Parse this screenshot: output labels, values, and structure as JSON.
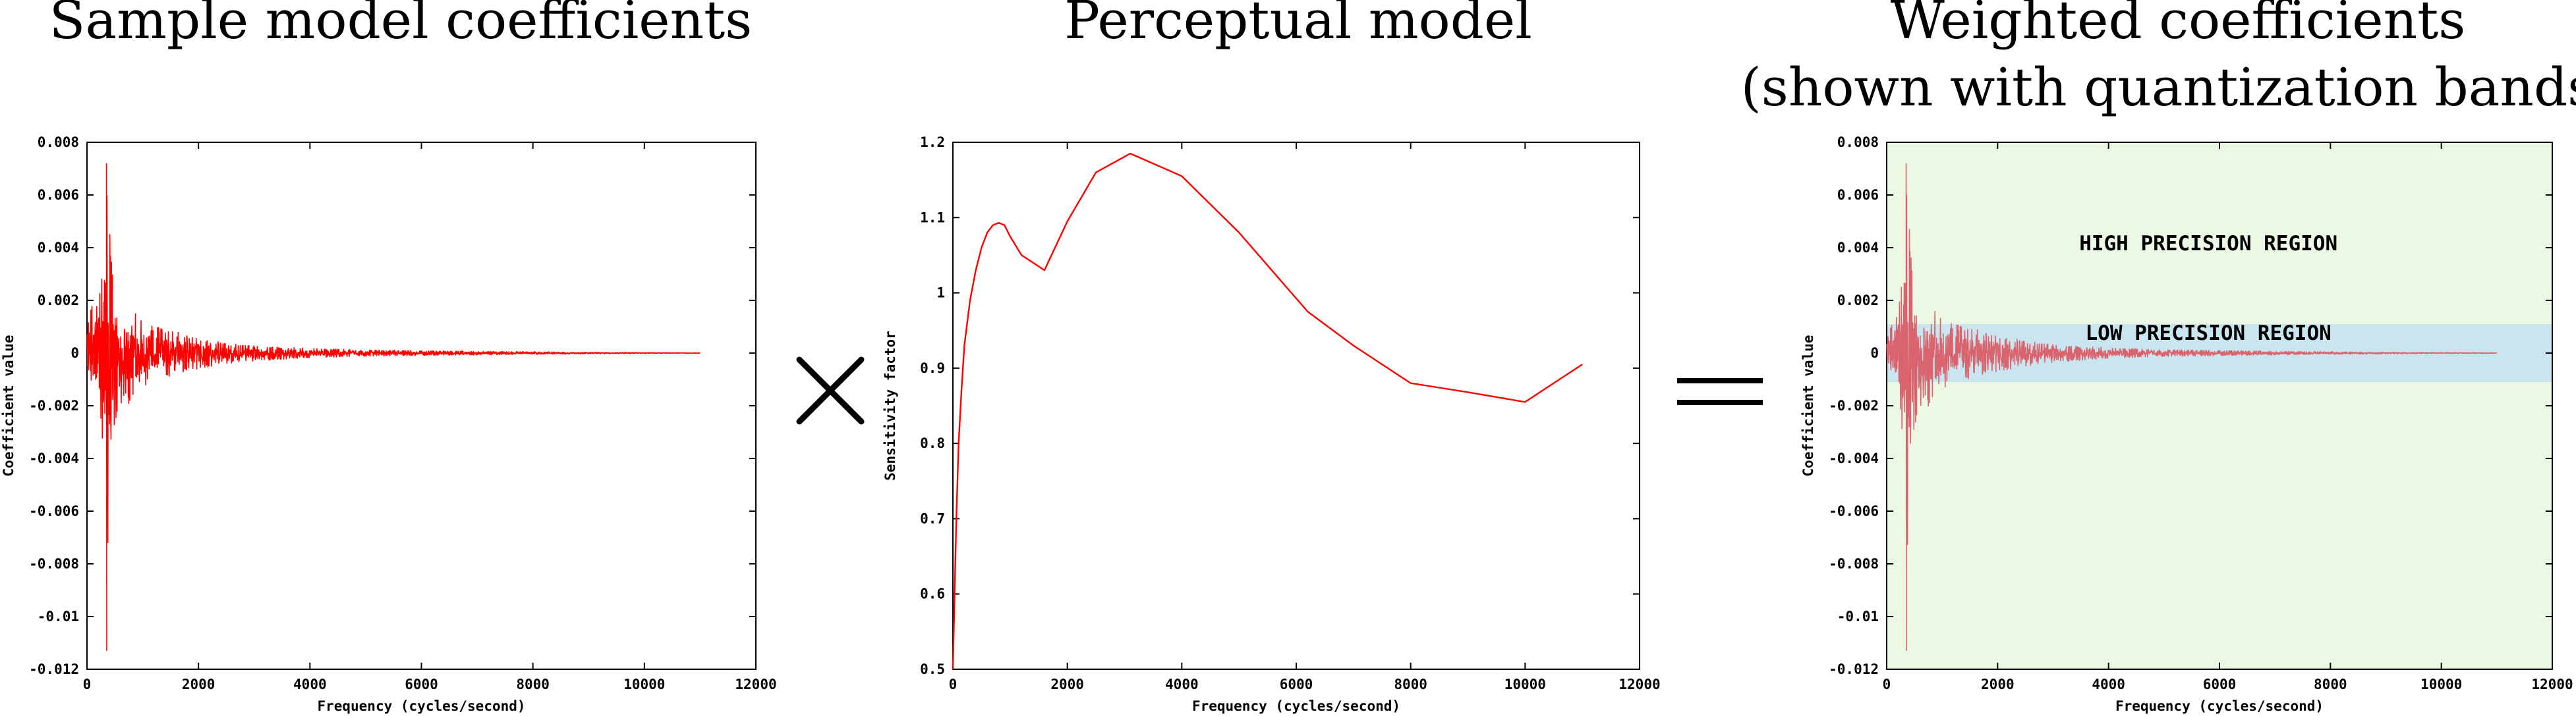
{
  "titles": {
    "left": "Sample model coefficients",
    "middle": "Perceptual model",
    "right_line1": "Weighted coefficients",
    "right_line2": "(shown with quantization bands)"
  },
  "operators": {
    "times_icon": "multiplication-sign-icon",
    "equals_icon": "equals-sign-icon"
  },
  "colors": {
    "series": "#ff0000",
    "weighted_series": "#d9646e",
    "high_region": "#eaf8e4",
    "low_region": "#c9e5ef",
    "frame": "#000000"
  },
  "chart_data": [
    {
      "type": "line",
      "xlabel": "Frequency (cycles/second)",
      "ylabel": "Coefficient value",
      "xlim": [
        0,
        12000
      ],
      "ylim": [
        -0.012,
        0.008
      ],
      "xticks": [
        "0",
        "2000",
        "4000",
        "6000",
        "8000",
        "10000",
        "12000"
      ],
      "yticks": [
        "0.008",
        "0.006",
        "0.004",
        "0.002",
        "0",
        "-0.002",
        "-0.004",
        "-0.006",
        "-0.008",
        "-0.01",
        "-0.012"
      ],
      "envelope": {
        "x": [
          0,
          100,
          200,
          300,
          350,
          400,
          450,
          500,
          600,
          800,
          1000,
          1200,
          1500,
          2000,
          2500,
          3000,
          4000,
          5000,
          6000,
          7000,
          8000,
          9000,
          10000,
          11000
        ],
        "max": [
          0.001,
          0.002,
          0.0022,
          0.0035,
          0.0072,
          0.0048,
          0.0042,
          0.0028,
          0.0022,
          0.0019,
          0.0014,
          0.0011,
          0.0009,
          0.0006,
          0.0004,
          0.0003,
          0.00018,
          0.00012,
          9e-05,
          7e-05,
          5e-05,
          3e-05,
          2e-05,
          1e-05
        ],
        "min": [
          -0.001,
          -0.0022,
          -0.0028,
          -0.0035,
          -0.0113,
          -0.005,
          -0.004,
          -0.0028,
          -0.0022,
          -0.0019,
          -0.0014,
          -0.0011,
          -0.0009,
          -0.0006,
          -0.0004,
          -0.0003,
          -0.00018,
          -0.00012,
          -9e-05,
          -7e-05,
          -5e-05,
          -3e-05,
          -2e-05,
          -1e-05
        ]
      }
    },
    {
      "type": "line",
      "xlabel": "Frequency (cycles/second)",
      "ylabel": "Sensitivity factor",
      "xlim": [
        0,
        12000
      ],
      "ylim": [
        0.5,
        1.2
      ],
      "xticks": [
        "0",
        "2000",
        "4000",
        "6000",
        "8000",
        "10000",
        "12000"
      ],
      "yticks": [
        "1.2",
        "1.1",
        "1",
        "0.9",
        "0.8",
        "0.7",
        "0.6",
        "0.5"
      ],
      "x": [
        0,
        30,
        60,
        100,
        150,
        200,
        300,
        400,
        500,
        600,
        700,
        800,
        900,
        1000,
        1200,
        1600,
        2000,
        2500,
        3100,
        4000,
        5000,
        6200,
        7000,
        8000,
        9000,
        10000,
        11000
      ],
      "y": [
        0.5,
        0.6,
        0.7,
        0.8,
        0.87,
        0.93,
        0.99,
        1.03,
        1.06,
        1.08,
        1.09,
        1.093,
        1.09,
        1.075,
        1.05,
        1.03,
        1.095,
        1.16,
        1.185,
        1.155,
        1.08,
        0.975,
        0.93,
        0.88,
        0.868,
        0.855,
        0.905
      ]
    },
    {
      "type": "line",
      "xlabel": "Frequency (cycles/second)",
      "ylabel": "Coefficient value",
      "xlim": [
        0,
        12000
      ],
      "ylim": [
        -0.012,
        0.008
      ],
      "xticks": [
        "0",
        "2000",
        "4000",
        "6000",
        "8000",
        "10000",
        "12000"
      ],
      "yticks": [
        "0.008",
        "0.006",
        "0.004",
        "0.002",
        "0",
        "-0.002",
        "-0.004",
        "-0.006",
        "-0.008",
        "-0.01",
        "-0.012"
      ],
      "bands": [
        {
          "label": "HIGH PRECISION REGION",
          "range": [
            -0.012,
            0.008
          ]
        },
        {
          "label": "LOW PRECISION REGION",
          "range": [
            -0.0011,
            0.0011
          ]
        }
      ],
      "envelope": {
        "x": [
          0,
          100,
          200,
          300,
          350,
          400,
          450,
          500,
          600,
          800,
          1000,
          1200,
          1500,
          2000,
          2500,
          3000,
          4000,
          5000,
          6000,
          7000,
          8000,
          9000,
          10000,
          11000
        ],
        "max": [
          0.0005,
          0.0012,
          0.0018,
          0.0032,
          0.0072,
          0.005,
          0.0044,
          0.003,
          0.0023,
          0.002,
          0.0015,
          0.0012,
          0.001,
          0.0007,
          0.0005,
          0.00035,
          0.0002,
          0.00013,
          0.0001,
          7e-05,
          5e-05,
          3e-05,
          2e-05,
          1e-05
        ],
        "min": [
          -0.0005,
          -0.0014,
          -0.0022,
          -0.0032,
          -0.0113,
          -0.0052,
          -0.0042,
          -0.003,
          -0.0023,
          -0.002,
          -0.0015,
          -0.0012,
          -0.001,
          -0.0007,
          -0.0005,
          -0.00035,
          -0.0002,
          -0.00013,
          -0.0001,
          -7e-05,
          -5e-05,
          -3e-05,
          -2e-05,
          -1e-05
        ]
      }
    }
  ]
}
